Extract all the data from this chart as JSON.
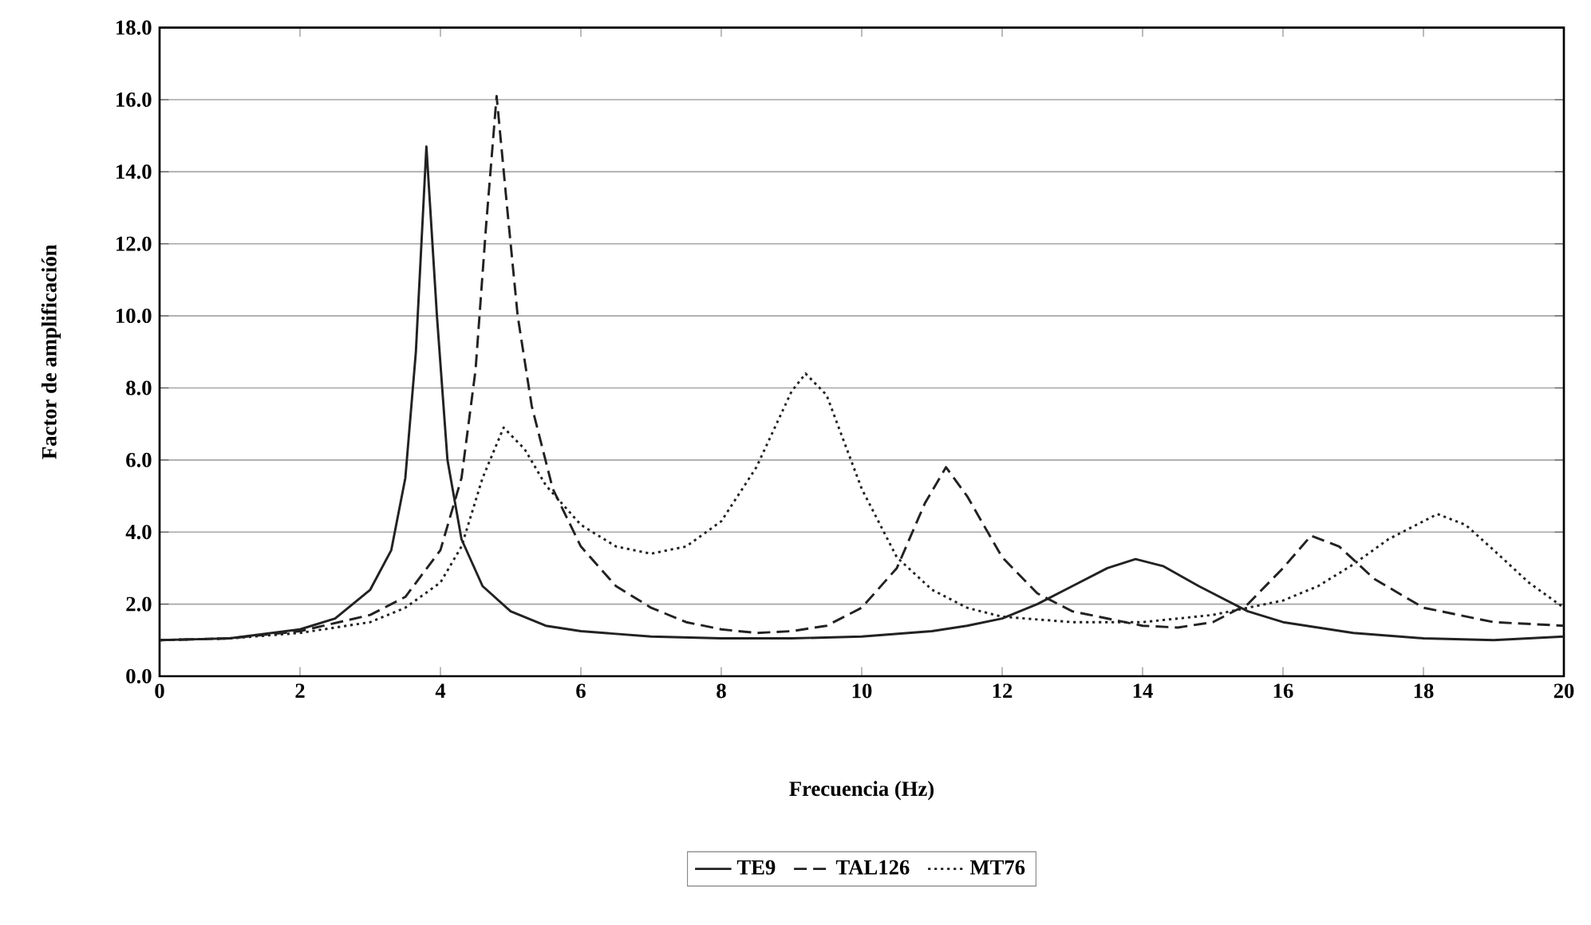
{
  "chart_data": {
    "type": "line",
    "xlabel": "Frecuencia (Hz)",
    "ylabel": "Factor de amplificación",
    "xlim": [
      0,
      20
    ],
    "xticks": [
      0,
      2,
      4,
      6,
      8,
      10,
      12,
      14,
      16,
      18,
      20
    ],
    "ylim": [
      0,
      18
    ],
    "yticks": [
      {
        "value": 0,
        "label": "0.0"
      },
      {
        "value": 2,
        "label": "2.0"
      },
      {
        "value": 4,
        "label": "4.0"
      },
      {
        "value": 6,
        "label": "6.0"
      },
      {
        "value": 8,
        "label": "8.0"
      },
      {
        "value": 10,
        "label": "10.0"
      },
      {
        "value": 12,
        "label": "12.0"
      },
      {
        "value": 14,
        "label": "14.0"
      },
      {
        "value": 16,
        "label": "16.0"
      },
      {
        "value": 18,
        "label": "18.0"
      }
    ],
    "grid": "y",
    "legend": "bottom",
    "marker": "none",
    "series": [
      {
        "name": "TE9",
        "color": "#222222",
        "line_style": "solid",
        "x": [
          0,
          1,
          2,
          2.5,
          3,
          3.3,
          3.5,
          3.65,
          3.8,
          3.95,
          4.1,
          4.3,
          4.6,
          5,
          5.5,
          6,
          7,
          8,
          9,
          10,
          11,
          11.5,
          12,
          12.5,
          13,
          13.5,
          13.9,
          14.3,
          14.8,
          15.5,
          16,
          17,
          18,
          19,
          20
        ],
        "values": [
          1.0,
          1.05,
          1.3,
          1.6,
          2.4,
          3.5,
          5.5,
          9,
          14.7,
          10,
          6,
          3.8,
          2.5,
          1.8,
          1.4,
          1.25,
          1.1,
          1.05,
          1.05,
          1.1,
          1.25,
          1.4,
          1.6,
          2.0,
          2.5,
          3.0,
          3.25,
          3.05,
          2.5,
          1.8,
          1.5,
          1.2,
          1.05,
          1.0,
          1.1
        ]
      },
      {
        "name": "TAL126",
        "color": "#222222",
        "line_style": "dashed",
        "x": [
          0,
          1,
          2,
          3,
          3.5,
          4,
          4.3,
          4.5,
          4.65,
          4.8,
          4.95,
          5.1,
          5.3,
          5.6,
          6,
          6.5,
          7,
          7.5,
          8,
          8.5,
          9,
          9.5,
          10,
          10.5,
          10.9,
          11.2,
          11.5,
          12,
          12.5,
          13,
          14,
          14.5,
          15,
          15.5,
          16,
          16.4,
          16.8,
          17.3,
          18,
          19,
          20
        ],
        "values": [
          1.0,
          1.05,
          1.25,
          1.7,
          2.2,
          3.5,
          5.5,
          8.5,
          12.5,
          16.1,
          13,
          10,
          7.5,
          5.2,
          3.6,
          2.5,
          1.9,
          1.5,
          1.3,
          1.2,
          1.25,
          1.4,
          1.9,
          3.0,
          4.8,
          5.8,
          5.0,
          3.3,
          2.3,
          1.8,
          1.4,
          1.35,
          1.5,
          2.0,
          3.0,
          3.9,
          3.6,
          2.7,
          1.9,
          1.5,
          1.4
        ]
      },
      {
        "name": "MT76",
        "color": "#222222",
        "line_style": "dotted",
        "x": [
          0,
          1,
          2,
          3,
          3.5,
          4,
          4.3,
          4.6,
          4.9,
          5.2,
          5.5,
          6,
          6.5,
          7,
          7.5,
          8,
          8.5,
          9,
          9.2,
          9.5,
          10,
          10.5,
          11,
          11.5,
          12,
          13,
          14,
          15,
          16,
          16.5,
          17,
          17.5,
          18.2,
          18.6,
          19,
          19.5,
          20
        ],
        "values": [
          1.0,
          1.05,
          1.2,
          1.5,
          1.9,
          2.6,
          3.6,
          5.5,
          6.9,
          6.3,
          5.3,
          4.2,
          3.6,
          3.4,
          3.6,
          4.3,
          5.8,
          7.9,
          8.4,
          7.8,
          5.2,
          3.3,
          2.4,
          1.9,
          1.65,
          1.5,
          1.5,
          1.7,
          2.1,
          2.5,
          3.1,
          3.8,
          4.5,
          4.2,
          3.5,
          2.6,
          1.9
        ]
      }
    ]
  }
}
